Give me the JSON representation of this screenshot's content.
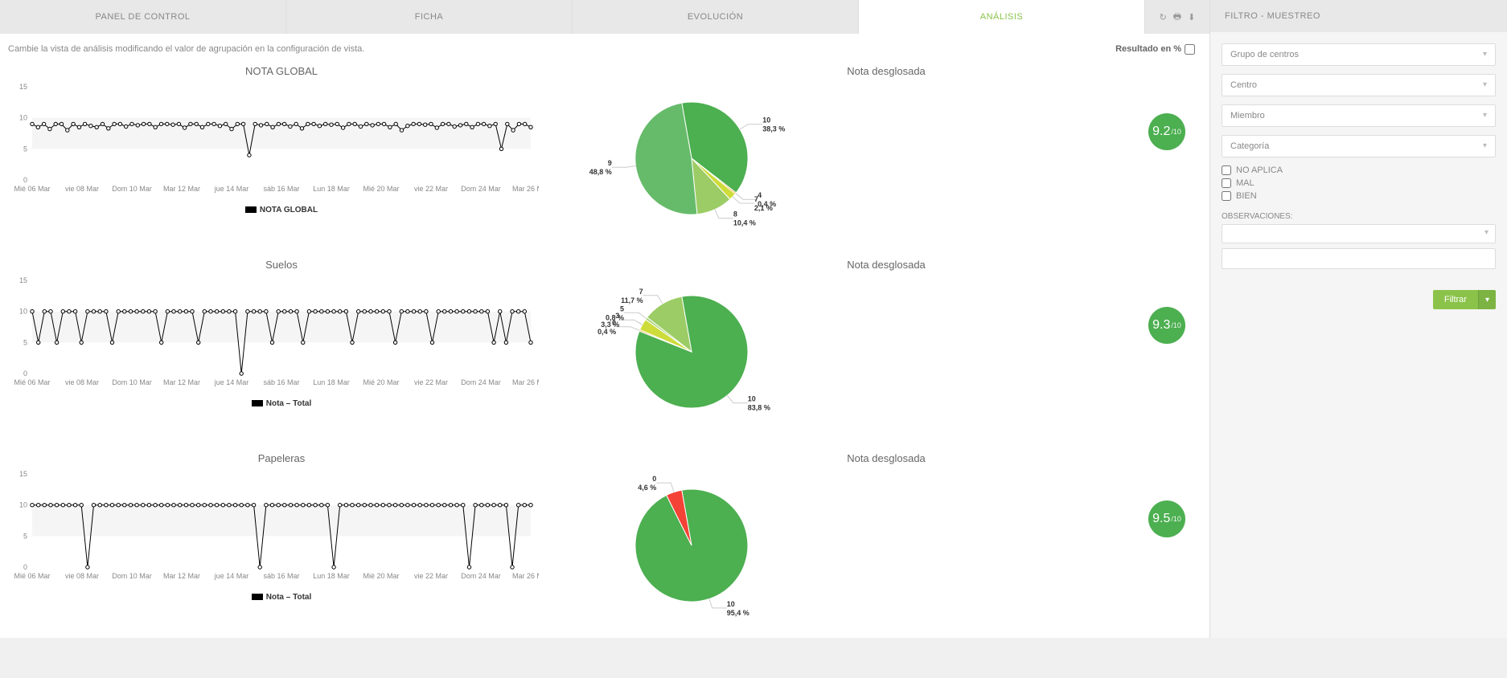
{
  "tabs": {
    "items": [
      "PANEL DE CONTROL",
      "FICHA",
      "EVOLUCIÓN",
      "ANÁLISIS"
    ],
    "active_index": 3,
    "active_color": "#8BC34A"
  },
  "subheader": {
    "hint": "Cambie la vista de análisis modificando el valor de agrupación en la configuración de vista.",
    "result_label": "Resultado en %"
  },
  "x_axis_labels": [
    "Mié 06 Mar",
    "vie 08 Mar",
    "Dom 10 Mar",
    "Mar 12 Mar",
    "jue 14 Mar",
    "sáb 16 Mar",
    "Lun 18 Mar",
    "Mié 20 Mar",
    "vie 22 Mar",
    "Dom 24 Mar",
    "Mar 26 Mar"
  ],
  "y_axis": {
    "ticks": [
      0,
      5,
      10,
      15
    ],
    "ylim": [
      0,
      15
    ]
  },
  "line_style": {
    "stroke": "#000000",
    "stroke_width": 1,
    "marker": "circle",
    "marker_fill": "#ffffff",
    "marker_stroke": "#000000",
    "grid_band": "#f5f5f5",
    "background": "#ffffff"
  },
  "charts": [
    {
      "title": "NOTA GLOBAL",
      "legend": "NOTA GLOBAL",
      "series": [
        9,
        8.5,
        9,
        8.2,
        9,
        9,
        8,
        9,
        8.5,
        9,
        8.7,
        8.5,
        9,
        8.3,
        9,
        9,
        8.6,
        9,
        8.8,
        9,
        9,
        8.5,
        9,
        9,
        8.9,
        9,
        8.4,
        9,
        9,
        8.5,
        9,
        9,
        8.7,
        9,
        8.2,
        9,
        9,
        4,
        9,
        8.8,
        9,
        8.5,
        9,
        9,
        8.6,
        9,
        8.3,
        9,
        9,
        8.7,
        9,
        8.9,
        9,
        8.4,
        9,
        9,
        8.6,
        9,
        8.8,
        9,
        9,
        8.5,
        9,
        8,
        8.7,
        9,
        9,
        8.9,
        9,
        8.4,
        9,
        9,
        8.6,
        8.8,
        9,
        8.5,
        9,
        9,
        8.7,
        9,
        5,
        9,
        8,
        9,
        9,
        8.5
      ],
      "pie_title": "Nota desglosada",
      "score": "9.2",
      "score_suffix": "/10",
      "score_color": "#4CAF50",
      "pie": {
        "slices": [
          {
            "label": "10",
            "pct": "38,3 %",
            "value": 38.3,
            "color": "#4CAF50"
          },
          {
            "label": "4",
            "pct": "0,4 %",
            "value": 0.4,
            "color": "#FF9800"
          },
          {
            "label": "7",
            "pct": "2,1 %",
            "value": 2.1,
            "color": "#CDDC39"
          },
          {
            "label": "8",
            "pct": "10,4 %",
            "value": 10.4,
            "color": "#9CCC65"
          },
          {
            "label": "9",
            "pct": "48,8 %",
            "value": 48.8,
            "color": "#66BB6A"
          }
        ]
      }
    },
    {
      "title": "Suelos",
      "legend": "Nota – Total",
      "series": [
        10,
        5,
        10,
        10,
        5,
        10,
        10,
        10,
        5,
        10,
        10,
        10,
        10,
        5,
        10,
        10,
        10,
        10,
        10,
        10,
        10,
        5,
        10,
        10,
        10,
        10,
        10,
        5,
        10,
        10,
        10,
        10,
        10,
        10,
        0,
        10,
        10,
        10,
        10,
        5,
        10,
        10,
        10,
        10,
        5,
        10,
        10,
        10,
        10,
        10,
        10,
        10,
        5,
        10,
        10,
        10,
        10,
        10,
        10,
        5,
        10,
        10,
        10,
        10,
        10,
        5,
        10,
        10,
        10,
        10,
        10,
        10,
        10,
        10,
        10,
        5,
        10,
        5,
        10,
        10,
        10,
        5
      ],
      "pie_title": "Nota desglosada",
      "score": "9.3",
      "score_suffix": "/10",
      "score_color": "#4CAF50",
      "pie": {
        "slices": [
          {
            "label": "10",
            "pct": "83,8 %",
            "value": 83.8,
            "color": "#4CAF50"
          },
          {
            "label": "0",
            "pct": "0,4 %",
            "value": 0.4,
            "color": "#FF9800"
          },
          {
            "label": "3",
            "pct": "3,3 %",
            "value": 3.3,
            "color": "#CDDC39"
          },
          {
            "label": "5",
            "pct": "0,8 %",
            "value": 0.8,
            "color": "#AED581"
          },
          {
            "label": "7",
            "pct": "11,7 %",
            "value": 11.7,
            "color": "#9CCC65"
          }
        ]
      }
    },
    {
      "title": "Papeleras",
      "legend": "Nota – Total",
      "series": [
        10,
        10,
        10,
        10,
        10,
        10,
        10,
        10,
        10,
        0,
        10,
        10,
        10,
        10,
        10,
        10,
        10,
        10,
        10,
        10,
        10,
        10,
        10,
        10,
        10,
        10,
        10,
        10,
        10,
        10,
        10,
        10,
        10,
        10,
        10,
        10,
        10,
        0,
        10,
        10,
        10,
        10,
        10,
        10,
        10,
        10,
        10,
        10,
        10,
        0,
        10,
        10,
        10,
        10,
        10,
        10,
        10,
        10,
        10,
        10,
        10,
        10,
        10,
        10,
        10,
        10,
        10,
        10,
        10,
        10,
        10,
        0,
        10,
        10,
        10,
        10,
        10,
        10,
        0,
        10,
        10,
        10
      ],
      "pie_title": "Nota desglosada",
      "score": "9.5",
      "score_suffix": "/10",
      "score_color": "#4CAF50",
      "pie": {
        "slices": [
          {
            "label": "10",
            "pct": "95,4 %",
            "value": 95.4,
            "color": "#4CAF50"
          },
          {
            "label": "0",
            "pct": "4,6 %",
            "value": 4.6,
            "color": "#F44336"
          }
        ]
      }
    }
  ],
  "sidebar": {
    "header": "FILTRO - MUESTREO",
    "selects": [
      "Grupo de centros",
      "Centro",
      "Miembro",
      "Categoría"
    ],
    "checks": [
      "NO APLICA",
      "MAL",
      "BIEN"
    ],
    "obs_label": "OBSERVACIONES:",
    "filter_button": "Filtrar",
    "split_glyph": "▾"
  },
  "icons": {
    "refresh": "↻",
    "print": "🖶",
    "download": "⬇"
  }
}
